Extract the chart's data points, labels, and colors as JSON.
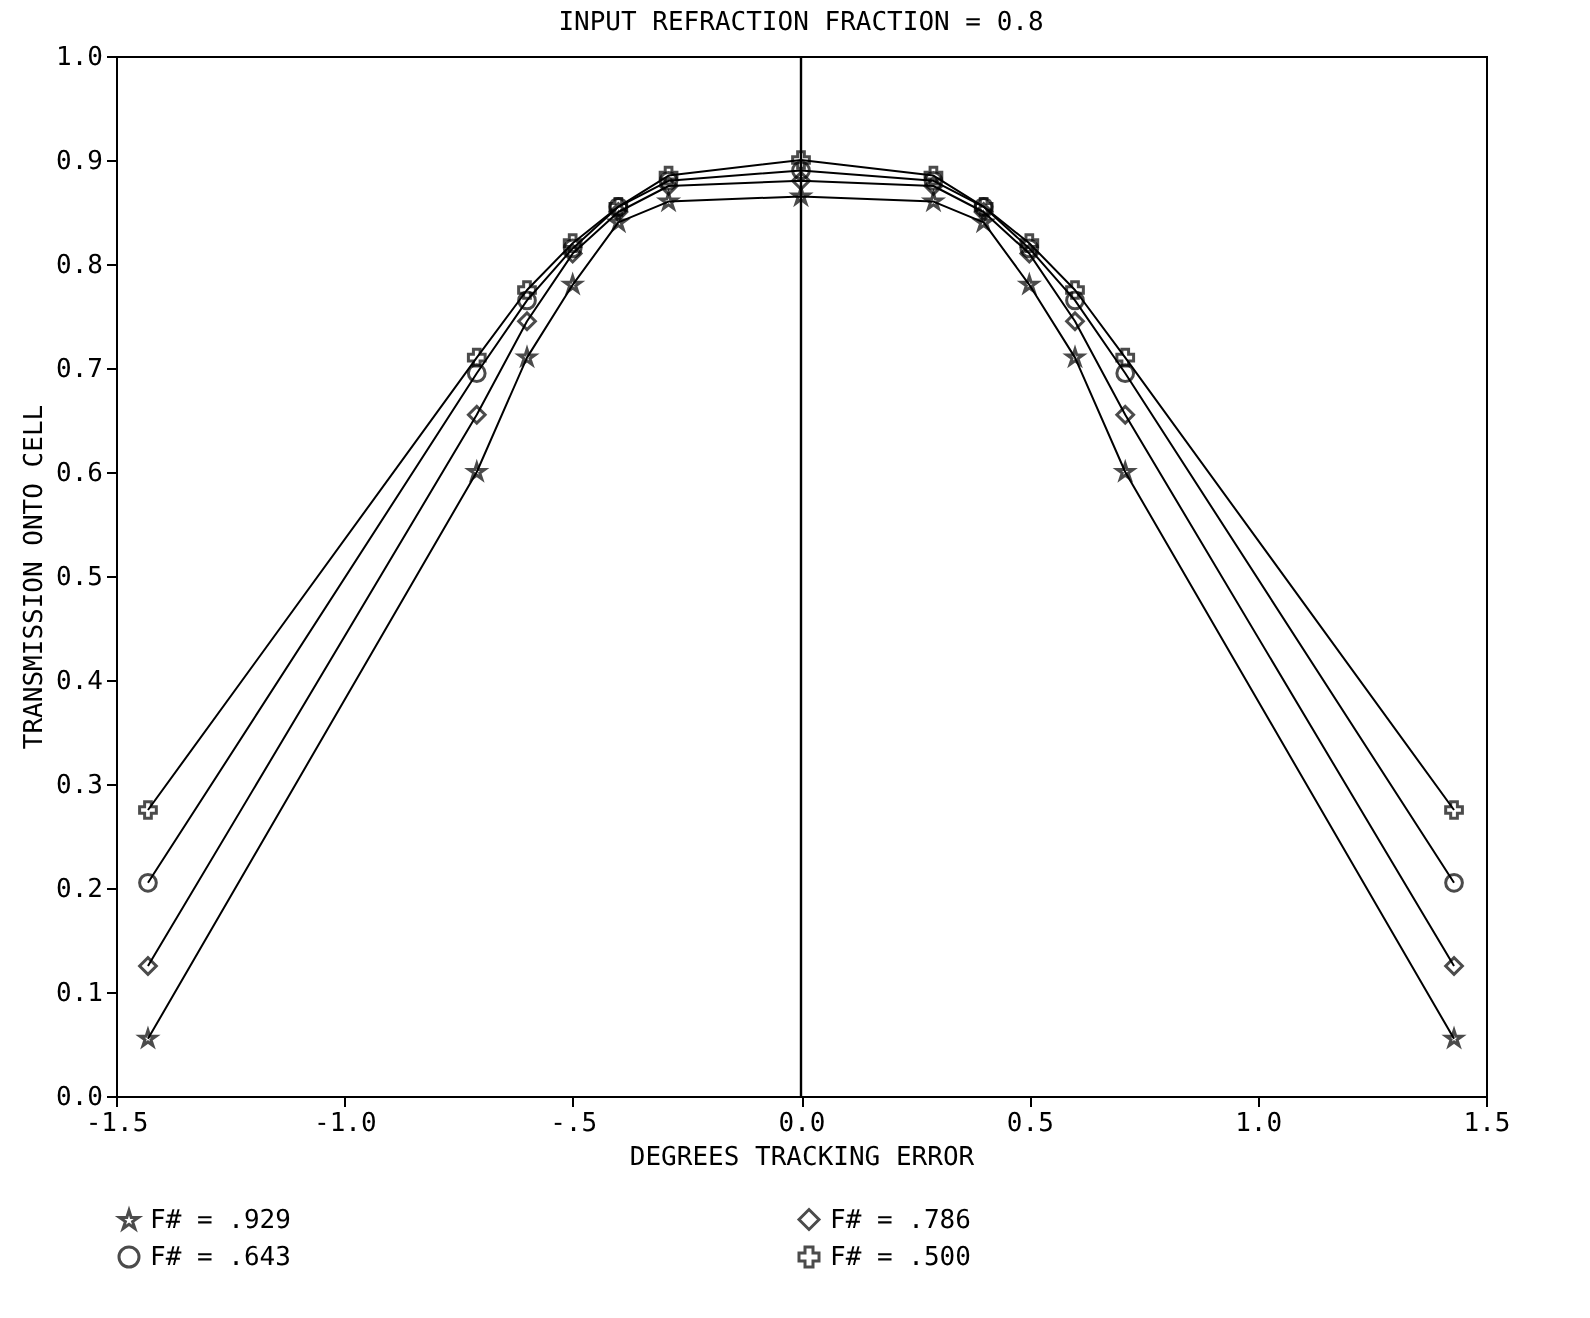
{
  "chart_data": {
    "type": "line",
    "title": "INPUT REFRACTION FRACTION = 0.8",
    "xlabel": "DEGREES TRACKING ERROR",
    "ylabel": "TRANSMISSION ONTO CELL",
    "x": [
      -1.43,
      -0.71,
      -0.6,
      -0.5,
      -0.4,
      -0.29,
      0,
      0.29,
      0.4,
      0.5,
      0.6,
      0.71,
      1.43
    ],
    "series": [
      {
        "name": "F# = .929",
        "color": "#000000",
        "marker": "star",
        "values": [
          0.055,
          0.6,
          0.71,
          0.78,
          0.84,
          0.86,
          0.865,
          0.86,
          0.84,
          0.78,
          0.71,
          0.6,
          0.055
        ]
      },
      {
        "name": "F# = .786",
        "color": "#000000",
        "marker": "diamond",
        "values": [
          0.125,
          0.655,
          0.745,
          0.81,
          0.85,
          0.875,
          0.88,
          0.875,
          0.85,
          0.81,
          0.745,
          0.655,
          0.125
        ]
      },
      {
        "name": "F# = .643",
        "color": "#000000",
        "marker": "circle",
        "values": [
          0.205,
          0.695,
          0.765,
          0.815,
          0.855,
          0.88,
          0.89,
          0.88,
          0.855,
          0.815,
          0.765,
          0.695,
          0.205
        ]
      },
      {
        "name": "F# = .500",
        "color": "#000000",
        "marker": "cross",
        "values": [
          0.275,
          0.71,
          0.775,
          0.82,
          0.855,
          0.885,
          0.9,
          0.885,
          0.855,
          0.82,
          0.775,
          0.71,
          0.275
        ]
      }
    ],
    "xlim": [
      -1.5,
      1.5
    ],
    "xticks": [
      {
        "value": -1.5,
        "label": "-1.5"
      },
      {
        "value": -1,
        "label": "-1.0"
      },
      {
        "value": -0.5,
        "label": "-.5"
      },
      {
        "value": 0,
        "label": "0.0"
      },
      {
        "value": 0.5,
        "label": "0.5"
      },
      {
        "value": 1,
        "label": "1.0"
      },
      {
        "value": 1.5,
        "label": "1.5"
      }
    ],
    "ylim": [
      0,
      1
    ],
    "yticks": [
      {
        "value": 0,
        "label": "0.0"
      },
      0.1,
      0.2,
      0.3,
      0.4,
      0.5,
      0.6,
      0.7,
      0.8,
      0.9,
      {
        "value": 1,
        "label": "1.0"
      }
    ],
    "ref_lines": [
      {
        "axis": "x",
        "value": 0,
        "color": "#000000"
      }
    ],
    "legend": "bottom",
    "line_style": "solid",
    "grid": false
  }
}
